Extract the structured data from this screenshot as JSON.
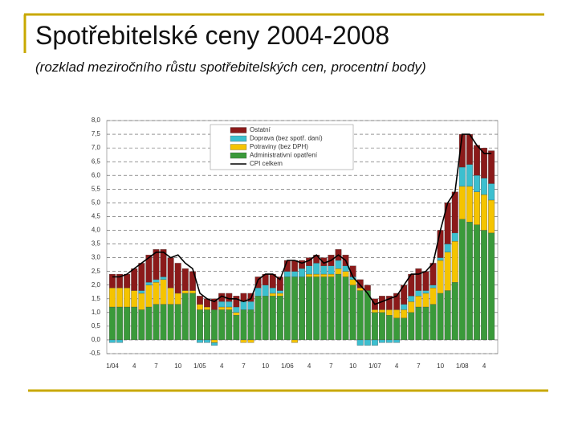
{
  "title": "Spotřebitelské ceny 2004-2008",
  "subtitle": "(rozklad meziročního růstu spotřebitelských cen, procentní body)",
  "chart_data": {
    "type": "stacked_bar",
    "categories": [
      "1/04",
      null,
      null,
      "4",
      null,
      null,
      "7",
      null,
      null,
      "10",
      null,
      null,
      "1/05",
      null,
      null,
      "4",
      null,
      null,
      "7",
      null,
      null,
      "10",
      null,
      null,
      "1/06",
      null,
      null,
      "4",
      null,
      null,
      "7",
      null,
      null,
      "10",
      null,
      null,
      "1/07",
      null,
      null,
      "4",
      null,
      null,
      "7",
      null,
      null,
      "10",
      null,
      null,
      "1/08",
      null,
      null,
      "4",
      null
    ],
    "series": [
      {
        "name": "Administrativní opatření",
        "color": "#3a9a3a",
        "values": [
          1.2,
          1.2,
          1.2,
          1.2,
          1.1,
          1.2,
          1.3,
          1.3,
          1.3,
          1.3,
          1.7,
          1.7,
          1.1,
          1.1,
          1.1,
          1.1,
          1.1,
          0.9,
          1.1,
          1.1,
          1.6,
          1.6,
          1.6,
          1.6,
          2.3,
          2.3,
          2.3,
          2.3,
          2.3,
          2.3,
          2.3,
          2.4,
          2.3,
          2.0,
          1.8,
          1.8,
          1.0,
          1.0,
          0.9,
          0.8,
          0.8,
          1.0,
          1.2,
          1.2,
          1.3,
          1.7,
          1.8,
          2.1,
          4.4,
          4.3,
          4.2,
          4.0,
          3.9
        ]
      },
      {
        "name": "Potraviny (bez DPH)",
        "color": "#f5c400",
        "values": [
          0.7,
          0.7,
          0.7,
          0.6,
          0.6,
          0.8,
          0.8,
          0.9,
          0.6,
          0.4,
          0.1,
          0.1,
          0.2,
          0.1,
          -0.1,
          0.1,
          0.1,
          0.1,
          -0.1,
          -0.1,
          0.0,
          0.0,
          0.1,
          0.1,
          0.0,
          -0.1,
          0.0,
          0.1,
          0.1,
          0.1,
          0.1,
          0.2,
          0.2,
          0.2,
          0.1,
          0.0,
          0.1,
          0.1,
          0.2,
          0.3,
          0.3,
          0.4,
          0.4,
          0.5,
          0.6,
          1.2,
          1.4,
          1.5,
          1.2,
          1.3,
          1.2,
          1.3,
          1.2
        ]
      },
      {
        "name": "Doprava (bez spotř. daní)",
        "color": "#3cbfcf",
        "values": [
          -0.1,
          -0.1,
          0,
          0,
          0.1,
          0.1,
          0.1,
          0.1,
          0,
          0,
          0,
          0,
          -0.1,
          -0.1,
          -0.1,
          0.2,
          0.2,
          0.2,
          0.3,
          0.3,
          0.3,
          0.4,
          0.2,
          0.1,
          0.2,
          0.2,
          0.3,
          0.3,
          0.4,
          0.3,
          0.3,
          0.3,
          0.2,
          0.1,
          -0.2,
          -0.2,
          -0.2,
          -0.1,
          -0.1,
          -0.1,
          0.2,
          0.2,
          0.2,
          0.1,
          0.1,
          0.1,
          0.3,
          0.3,
          0.7,
          0.8,
          0.6,
          0.6,
          0.6
        ]
      },
      {
        "name": "Ostatní",
        "color": "#8b1a1a",
        "values": [
          0.5,
          0.5,
          0.5,
          0.8,
          1.0,
          1.0,
          1.1,
          1.0,
          1.1,
          1.1,
          0.8,
          0.7,
          0.3,
          0.3,
          0.4,
          0.3,
          0.3,
          0.4,
          0.3,
          0.3,
          0.4,
          0.4,
          0.5,
          0.5,
          0.4,
          0.4,
          0.3,
          0.3,
          0.3,
          0.3,
          0.4,
          0.4,
          0.4,
          0.4,
          0.3,
          0.2,
          0.4,
          0.5,
          0.5,
          0.6,
          0.7,
          0.8,
          0.8,
          0.7,
          0.8,
          1.0,
          1.5,
          1.5,
          1.2,
          1.1,
          1.1,
          1.1,
          1.2
        ]
      },
      {
        "name": "CPI celkem",
        "color": "#000000",
        "type": "line",
        "values": [
          2.3,
          2.3,
          2.4,
          2.6,
          2.8,
          3.0,
          3.2,
          3.2,
          3.0,
          3.1,
          2.8,
          2.6,
          1.7,
          1.5,
          1.4,
          1.6,
          1.5,
          1.5,
          1.4,
          1.5,
          2.2,
          2.4,
          2.4,
          2.2,
          2.9,
          2.9,
          2.8,
          2.9,
          3.1,
          2.8,
          2.9,
          3.1,
          2.9,
          2.3,
          2.0,
          1.7,
          1.3,
          1.4,
          1.5,
          1.6,
          2.0,
          2.4,
          2.4,
          2.5,
          2.8,
          4.0,
          5.0,
          5.4,
          7.5,
          7.5,
          7.1,
          6.8,
          6.8
        ]
      }
    ],
    "ylim": [
      -0.5,
      8.0
    ],
    "yticks": [
      {
        "value": -0.5,
        "label": "-0,5"
      },
      {
        "value": 0,
        "label": "0,0"
      },
      {
        "value": 0.5,
        "label": "0,5"
      },
      {
        "value": 1,
        "label": "1,0"
      },
      {
        "value": 1.5,
        "label": "1,5"
      },
      {
        "value": 2,
        "label": "2,0"
      },
      {
        "value": 2.5,
        "label": "2,5"
      },
      {
        "value": 3,
        "label": "3,0"
      },
      {
        "value": 3.5,
        "label": "3,5"
      },
      {
        "value": 4,
        "label": "4,0"
      },
      {
        "value": 4.5,
        "label": "4,5"
      },
      {
        "value": 5,
        "label": "5,0"
      },
      {
        "value": 5.5,
        "label": "5,5"
      },
      {
        "value": 6,
        "label": "6,0"
      },
      {
        "value": 6.5,
        "label": "6,5"
      },
      {
        "value": 7,
        "label": "7,0"
      },
      {
        "value": 7.5,
        "label": "7,5"
      },
      {
        "value": 8,
        "label": "8,0"
      }
    ],
    "grid": true,
    "legend": "top"
  }
}
